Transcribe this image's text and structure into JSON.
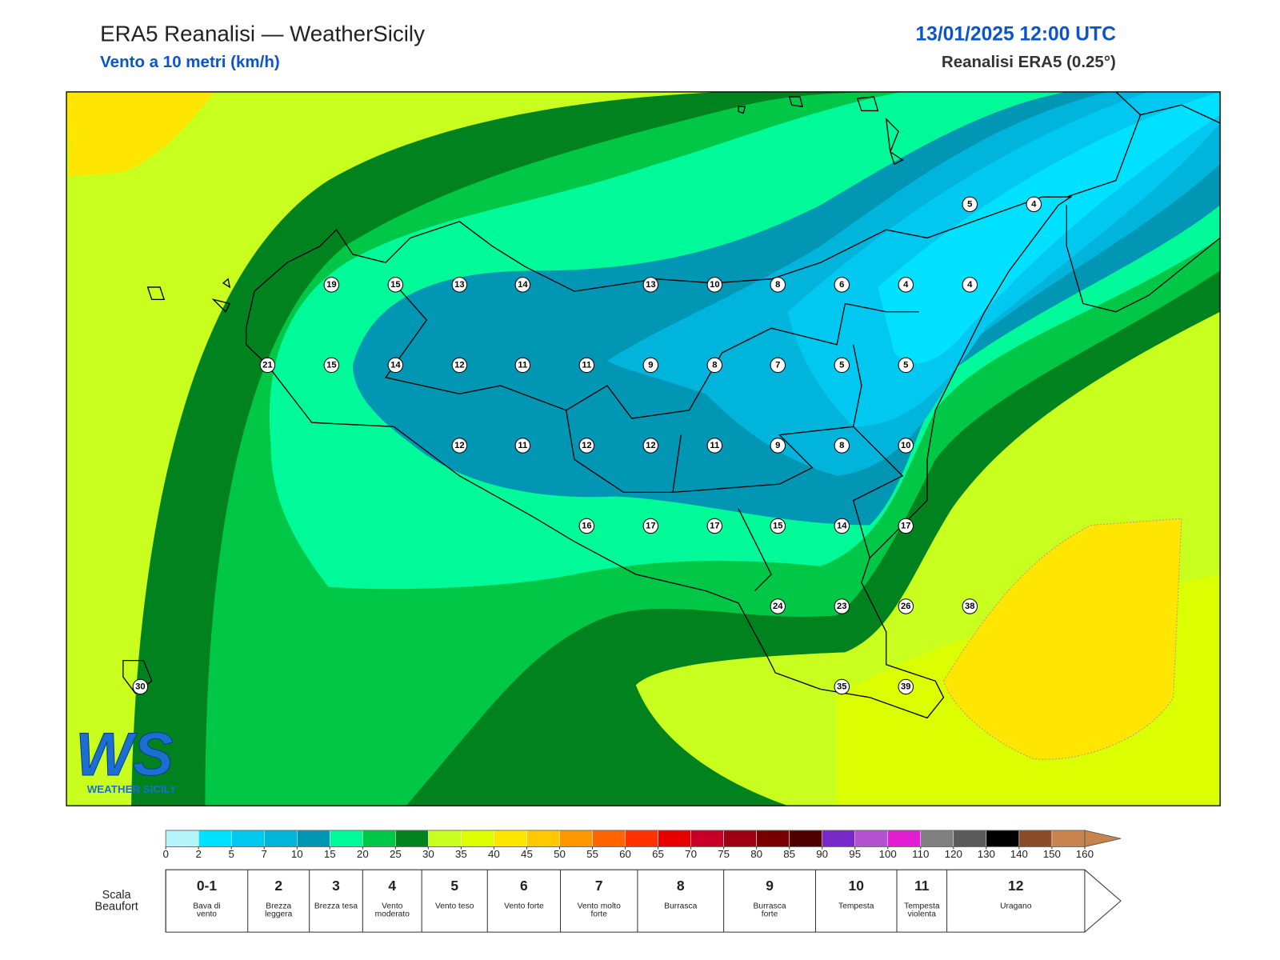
{
  "header": {
    "title": "ERA5 Reanalisi — WeatherSicily",
    "subtitle": "Vento a 10 metri (km/h)",
    "datetime": "13/01/2025 12:00 UTC",
    "source": "Reanalisi ERA5 (0.25°)"
  },
  "map": {
    "station_values": [
      5,
      4,
      19,
      15,
      13,
      14,
      13,
      10,
      8,
      6,
      4,
      4,
      21,
      15,
      14,
      12,
      11,
      11,
      9,
      8,
      7,
      5,
      5,
      12,
      11,
      12,
      12,
      11,
      9,
      8,
      10,
      16,
      17,
      17,
      15,
      14,
      17,
      24,
      23,
      26,
      38,
      30,
      35,
      39
    ]
  },
  "colorbar": {
    "ticks": [
      0,
      2,
      5,
      7,
      10,
      15,
      20,
      25,
      30,
      35,
      40,
      45,
      50,
      55,
      60,
      65,
      70,
      75,
      80,
      85,
      90,
      95,
      100,
      110,
      120,
      130,
      140,
      150,
      160
    ],
    "colors": [
      "#b4f5fc",
      "#00e1ff",
      "#00c8f0",
      "#00b4dc",
      "#0096b4",
      "#00fa9a",
      "#00c846",
      "#00821e",
      "#c8ff1e",
      "#dcff00",
      "#ffe600",
      "#ffc800",
      "#ff9600",
      "#ff6400",
      "#ff3200",
      "#e60000",
      "#c80028",
      "#a00014",
      "#780000",
      "#500000",
      "#7828c8",
      "#b450d2",
      "#e11ed2",
      "#808080",
      "#5a5a5a",
      "#000000",
      "#8c4b28",
      "#c8844c"
    ]
  },
  "beaufort": {
    "title": "Scala Beaufort",
    "levels": [
      {
        "force": "0-1",
        "description": "Bava di vento"
      },
      {
        "force": "2",
        "description": "Brezza leggera"
      },
      {
        "force": "3",
        "description": "Brezza tesa"
      },
      {
        "force": "4",
        "description": "Vento moderato"
      },
      {
        "force": "5",
        "description": "Vento teso"
      },
      {
        "force": "6",
        "description": "Vento forte"
      },
      {
        "force": "7",
        "description": "Vento molto forte"
      },
      {
        "force": "8",
        "description": "Burrasca"
      },
      {
        "force": "9",
        "description": "Burrasca forte"
      },
      {
        "force": "10",
        "description": "Tempesta"
      },
      {
        "force": "11",
        "description": "Tempesta violenta"
      },
      {
        "force": "12",
        "description": "Uragano"
      }
    ]
  },
  "logo": {
    "mark": "WS",
    "text": "WEATHER SICILY"
  }
}
